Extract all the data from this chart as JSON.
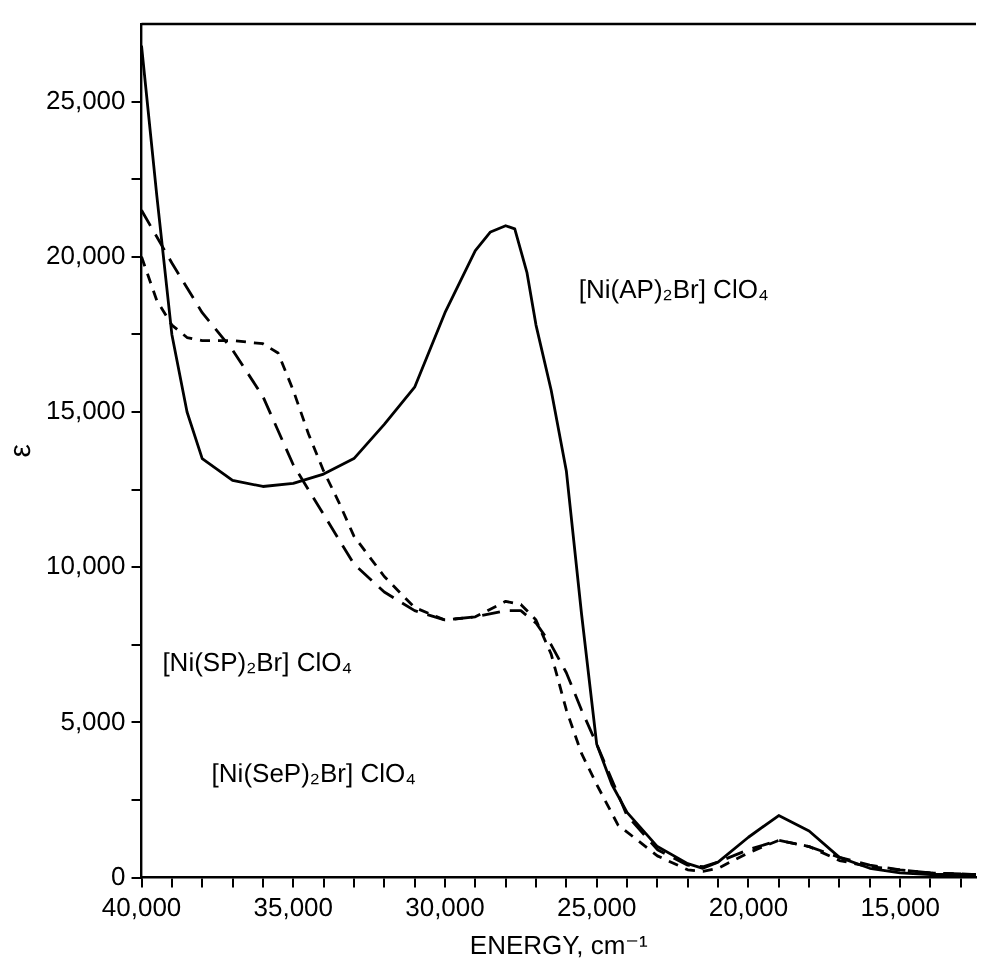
{
  "chart_data": {
    "type": "line",
    "xlabel": "ENERGY, cm⁻¹",
    "ylabel": "ε",
    "xlim": [
      40000,
      12500
    ],
    "ylim": [
      0,
      27500
    ],
    "xticks": [
      {
        "value": 40000,
        "label": "40,000"
      },
      {
        "value": 39000,
        "label": null
      },
      {
        "value": 38000,
        "label": null
      },
      {
        "value": 37000,
        "label": null
      },
      {
        "value": 36000,
        "label": null
      },
      {
        "value": 35000,
        "label": "35,000"
      },
      {
        "value": 34000,
        "label": null
      },
      {
        "value": 33000,
        "label": null
      },
      {
        "value": 32000,
        "label": null
      },
      {
        "value": 31000,
        "label": null
      },
      {
        "value": 30000,
        "label": "30,000"
      },
      {
        "value": 29000,
        "label": null
      },
      {
        "value": 28000,
        "label": null
      },
      {
        "value": 27000,
        "label": null
      },
      {
        "value": 26000,
        "label": null
      },
      {
        "value": 25000,
        "label": "25,000"
      },
      {
        "value": 24000,
        "label": null
      },
      {
        "value": 23000,
        "label": null
      },
      {
        "value": 22000,
        "label": null
      },
      {
        "value": 21000,
        "label": null
      },
      {
        "value": 20000,
        "label": "20,000"
      },
      {
        "value": 19000,
        "label": null
      },
      {
        "value": 18000,
        "label": null
      },
      {
        "value": 17000,
        "label": null
      },
      {
        "value": 16000,
        "label": null
      },
      {
        "value": 15000,
        "label": "15,000"
      },
      {
        "value": 14000,
        "label": null
      },
      {
        "value": 13000,
        "label": null
      }
    ],
    "yticks": [
      0,
      {
        "value": 2500,
        "label": null
      },
      {
        "value": 5000,
        "label": "5,000"
      },
      {
        "value": 7500,
        "label": null
      },
      {
        "value": 10000,
        "label": "10,000"
      },
      {
        "value": 12500,
        "label": null
      },
      {
        "value": 15000,
        "label": "15,000"
      },
      {
        "value": 17500,
        "label": null
      },
      {
        "value": 20000,
        "label": "20,000"
      },
      {
        "value": 22500,
        "label": null
      },
      {
        "value": 25000,
        "label": "25,000"
      }
    ],
    "grid": false,
    "legend": false,
    "marker": "none",
    "series": [
      {
        "color": "#000000",
        "line_style": "solid",
        "x": [
          40000,
          39500,
          39000,
          38500,
          38000,
          37000,
          36000,
          35000,
          34000,
          33000,
          32000,
          31000,
          30000,
          29000,
          28500,
          28000,
          27700,
          27300,
          27000,
          26500,
          26000,
          25500,
          25000,
          24500,
          24000,
          23000,
          22000,
          21500,
          21000,
          20000,
          19000,
          18000,
          17000,
          16000,
          15000,
          14000,
          12500
        ],
        "values": [
          26800,
          22000,
          17500,
          15000,
          13500,
          12800,
          12600,
          12700,
          13000,
          13500,
          14600,
          15800,
          18200,
          20200,
          20800,
          21000,
          20900,
          19500,
          17800,
          15700,
          13100,
          8500,
          4300,
          3000,
          2100,
          1000,
          450,
          300,
          500,
          1300,
          2000,
          1500,
          650,
          300,
          150,
          100,
          100
        ]
      },
      {
        "color": "#000000",
        "line_style": "dashed",
        "x": [
          40000,
          39000,
          38000,
          37000,
          36000,
          35000,
          34000,
          33000,
          32000,
          31000,
          30000,
          29000,
          28000,
          27500,
          27000,
          26500,
          26000,
          25500,
          25000,
          24000,
          23000,
          22000,
          21500,
          21000,
          20000,
          19000,
          18000,
          17000,
          16000,
          15000,
          14000,
          12500
        ],
        "values": [
          21500,
          19800,
          18200,
          17000,
          15500,
          13300,
          11700,
          10100,
          9200,
          8600,
          8300,
          8400,
          8600,
          8600,
          8200,
          7500,
          6600,
          5400,
          4300,
          2000,
          900,
          400,
          350,
          500,
          900,
          1200,
          1000,
          650,
          400,
          250,
          150,
          100
        ]
      },
      {
        "color": "#000000",
        "line_style": "dotted",
        "x": [
          40000,
          39500,
          39000,
          38500,
          38000,
          37000,
          36000,
          35500,
          35000,
          34500,
          34000,
          33500,
          33000,
          32000,
          31000,
          30000,
          29000,
          28000,
          27500,
          27000,
          26500,
          26000,
          25500,
          25000,
          24300,
          23000,
          22000,
          21500,
          21000,
          20000,
          19000,
          18000,
          17000,
          16000,
          15000,
          14000,
          12500
        ],
        "values": [
          20000,
          18600,
          17800,
          17400,
          17300,
          17300,
          17200,
          16900,
          15700,
          14300,
          13100,
          12100,
          11000,
          9700,
          8700,
          8300,
          8400,
          8900,
          8800,
          8300,
          7200,
          5400,
          4000,
          3000,
          1700,
          700,
          250,
          200,
          300,
          800,
          1200,
          1000,
          550,
          350,
          250,
          150,
          100
        ]
      }
    ],
    "annotations": [
      "[Ni(AP)₂Br] ClO₄",
      "[Ni(SP)₂Br] ClO₄",
      "[Ni(SeP)₂Br] ClO₄"
    ]
  }
}
